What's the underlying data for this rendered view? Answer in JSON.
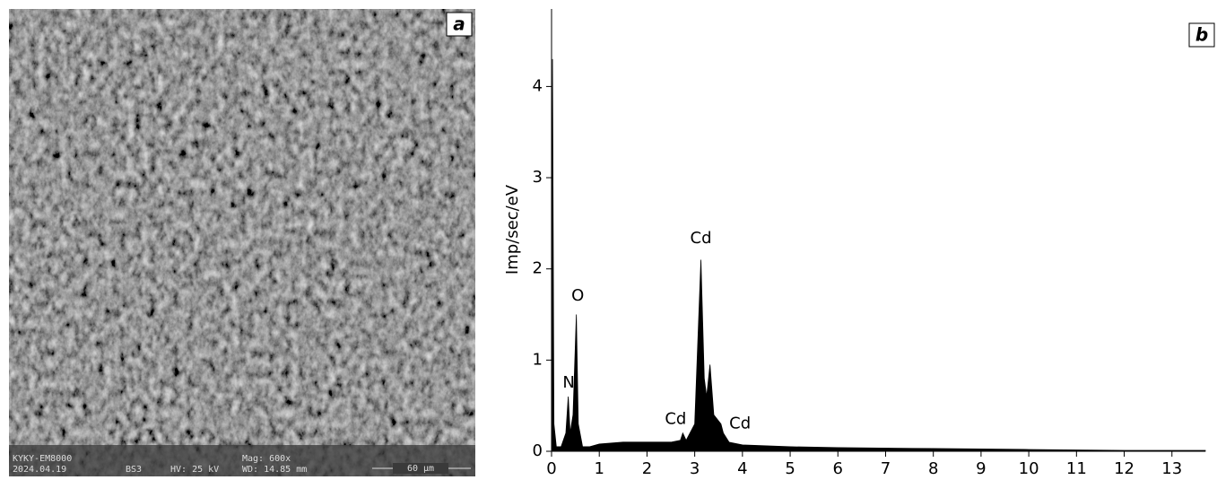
{
  "sem_panel": {
    "panel_label": "a",
    "info": [
      "KYKY-EM8000",
      "2024.04.19",
      "BS3",
      "HV: 25 kV",
      "Mag: 600x",
      "WD: 14.85 mm"
    ],
    "scale_bar": "60 µm"
  },
  "chart_data": {
    "type": "area",
    "panel_label": "b",
    "y_label": "Imp/sec/eV",
    "color": "#000000",
    "x": [
      0,
      0.02,
      0.05,
      0.1,
      0.2,
      0.3,
      0.35,
      0.39,
      0.45,
      0.52,
      0.56,
      0.65,
      0.8,
      1,
      1.5,
      2,
      2.5,
      2.7,
      2.75,
      2.82,
      3.0,
      3.13,
      3.2,
      3.25,
      3.32,
      3.4,
      3.55,
      3.6,
      3.72,
      4,
      5,
      6,
      8,
      10,
      12,
      13.7
    ],
    "values": [
      0,
      4.3,
      0.3,
      0.05,
      0.05,
      0.2,
      0.6,
      0.2,
      0.4,
      1.5,
      0.3,
      0.05,
      0.05,
      0.08,
      0.1,
      0.1,
      0.1,
      0.12,
      0.2,
      0.12,
      0.3,
      2.1,
      0.8,
      0.6,
      0.95,
      0.4,
      0.3,
      0.2,
      0.1,
      0.07,
      0.05,
      0.04,
      0.03,
      0.02,
      0.01,
      0.01
    ],
    "annotations": [
      "N",
      "O",
      "Cd",
      "Cd",
      "Cd"
    ],
    "xlim": [
      0,
      13.7
    ],
    "ylim": [
      0,
      4.85
    ],
    "xticks": [
      0,
      1,
      2,
      3,
      4,
      5,
      6,
      7,
      8,
      9,
      10,
      11,
      12,
      13
    ],
    "yticks": [
      0,
      1,
      2,
      3,
      4
    ]
  }
}
